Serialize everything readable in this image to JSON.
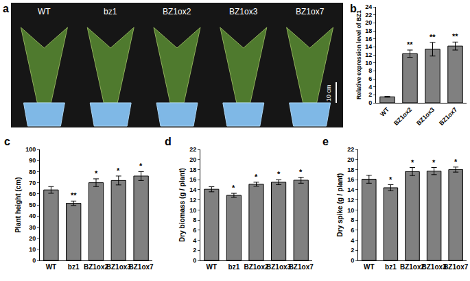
{
  "panel_a": {
    "title": "a",
    "labels": [
      "WT",
      "bz1",
      "BZ1ox2",
      "BZ1ox3",
      "BZ1ox7"
    ],
    "scale_bar": "10 cm"
  },
  "chart_data": [
    {
      "type": "bar",
      "title": "b",
      "categories": [
        "WT",
        "BZ1ox2",
        "BZ1ox3",
        "BZ1ox7"
      ],
      "values": [
        1.5,
        12.3,
        13.4,
        14.2
      ],
      "errors": [
        0.1,
        0.9,
        1.7,
        1.0
      ],
      "significance": [
        null,
        "**",
        "**",
        "**"
      ],
      "color": "#808080",
      "ylabel": "Relative expression level of BZ1",
      "ylim": [
        0,
        24
      ],
      "yticks": [
        0,
        2,
        4,
        6,
        8,
        10,
        12,
        14,
        16,
        18,
        20,
        22,
        24
      ],
      "grid": false
    },
    {
      "type": "bar",
      "title": "c",
      "categories": [
        "WT",
        "bz1",
        "BZ1ox2",
        "BZ1ox3",
        "BZ1ox7"
      ],
      "values": [
        63.5,
        51.5,
        70,
        72,
        76
      ],
      "errors": [
        3,
        2,
        3.5,
        4,
        4
      ],
      "significance": [
        null,
        "**",
        "*",
        "*",
        "*"
      ],
      "color": "#808080",
      "ylabel": "Plant height (cm)",
      "ylim": [
        0,
        100
      ],
      "yticks": [
        0,
        10,
        20,
        30,
        40,
        50,
        60,
        70,
        80,
        90,
        100
      ],
      "grid": false
    },
    {
      "type": "bar",
      "title": "d",
      "categories": [
        "WT",
        "bz1",
        "BZ1ox2",
        "BZ1ox3",
        "BZ1ox7"
      ],
      "values": [
        14.1,
        12.9,
        15.1,
        15.5,
        15.9
      ],
      "errors": [
        0.5,
        0.4,
        0.4,
        0.5,
        0.6
      ],
      "significance": [
        null,
        "*",
        "*",
        "*",
        "*"
      ],
      "color": "#808080",
      "ylabel": "Dry biomass (g / plant)",
      "ylim": [
        0,
        22
      ],
      "yticks": [
        0,
        2,
        4,
        6,
        8,
        10,
        12,
        14,
        16,
        18,
        20,
        22
      ],
      "grid": false
    },
    {
      "type": "bar",
      "title": "e",
      "categories": [
        "WT",
        "bz1",
        "BZ1ox2",
        "BZ1ox3",
        "BZ1ox7"
      ],
      "values": [
        16.1,
        14.4,
        17.6,
        17.7,
        18.0
      ],
      "errors": [
        0.8,
        0.6,
        0.8,
        0.7,
        0.5
      ],
      "significance": [
        null,
        "*",
        "*",
        "*",
        "*"
      ],
      "color": "#808080",
      "ylabel": "Dry spike (g / plant)",
      "ylim": [
        0,
        22
      ],
      "yticks": [
        0,
        2,
        4,
        6,
        8,
        10,
        12,
        14,
        16,
        18,
        20,
        22
      ],
      "grid": false
    }
  ]
}
